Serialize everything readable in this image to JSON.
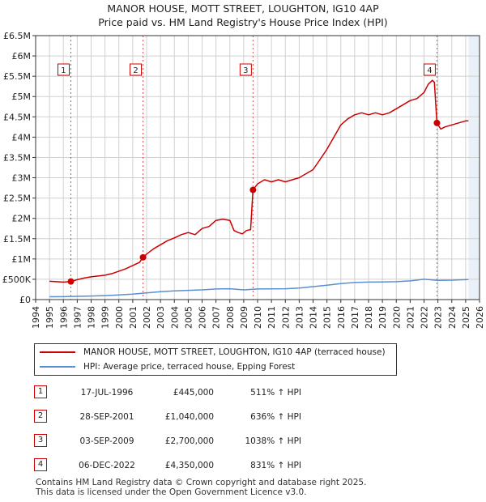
{
  "title": {
    "line1": "MANOR HOUSE, MOTT STREET, LOUGHTON, IG10 4AP",
    "line2": "Price paid vs. HM Land Registry's House Price Index (HPI)"
  },
  "colors": {
    "price_line": "#cc0000",
    "hpi_line": "#5b8fd1",
    "marker": "#cc0000",
    "band": "#dce6f2",
    "grid": "#d0d0d0"
  },
  "legend": {
    "price_label": "MANOR HOUSE, MOTT STREET, LOUGHTON, IG10 4AP (terraced house)",
    "hpi_label": "HPI: Average price, terraced house, Epping Forest"
  },
  "sales": [
    {
      "num": "1",
      "date": "17-JUL-1996",
      "price": "£445,000",
      "hpi": "511% ↑ HPI"
    },
    {
      "num": "2",
      "date": "28-SEP-2001",
      "price": "£1,040,000",
      "hpi": "636% ↑ HPI"
    },
    {
      "num": "3",
      "date": "03-SEP-2009",
      "price": "£2,700,000",
      "hpi": "1038% ↑ HPI"
    },
    {
      "num": "4",
      "date": "06-DEC-2022",
      "price": "£4,350,000",
      "hpi": "831% ↑ HPI"
    }
  ],
  "footer": {
    "line1": "Contains HM Land Registry data © Crown copyright and database right 2025.",
    "line2": "This data is licensed under the Open Government Licence v3.0."
  },
  "chart_data": {
    "type": "line",
    "xlim": [
      1994,
      2026
    ],
    "ylim": [
      0,
      6500000
    ],
    "x_ticks": [
      "1994",
      "1995",
      "1996",
      "1997",
      "1998",
      "1999",
      "2000",
      "2001",
      "2002",
      "2003",
      "2004",
      "2005",
      "2006",
      "2007",
      "2008",
      "2009",
      "2010",
      "2011",
      "2012",
      "2013",
      "2014",
      "2015",
      "2016",
      "2017",
      "2018",
      "2019",
      "2020",
      "2021",
      "2022",
      "2023",
      "2024",
      "2025",
      "2026"
    ],
    "y_ticks": [
      {
        "value": 0,
        "label": "£0"
      },
      {
        "value": 500000,
        "label": "£500K"
      },
      {
        "value": 1000000,
        "label": "£1M"
      },
      {
        "value": 1500000,
        "label": "£1.5M"
      },
      {
        "value": 2000000,
        "label": "£2M"
      },
      {
        "value": 2500000,
        "label": "£2.5M"
      },
      {
        "value": 3000000,
        "label": "£3M"
      },
      {
        "value": 3500000,
        "label": "£3.5M"
      },
      {
        "value": 4000000,
        "label": "£4M"
      },
      {
        "value": 4500000,
        "label": "£4.5M"
      },
      {
        "value": 5000000,
        "label": "£5M"
      },
      {
        "value": 5500000,
        "label": "£5.5M"
      },
      {
        "value": 6000000,
        "label": "£6M"
      },
      {
        "value": 6500000,
        "label": "£6.5M"
      }
    ],
    "future_shade_from": 2025.2,
    "series": [
      {
        "name": "MANOR HOUSE, MOTT STREET, LOUGHTON, IG10 4AP (terraced house)",
        "x": [
          1995.0,
          1995.5,
          1996.0,
          1996.54,
          1997.0,
          1997.5,
          1998.0,
          1998.5,
          1999.0,
          1999.5,
          2000.0,
          2000.5,
          2001.0,
          2001.5,
          2001.74,
          2002.0,
          2002.5,
          2003.0,
          2003.5,
          2004.0,
          2004.5,
          2005.0,
          2005.5,
          2006.0,
          2006.5,
          2007.0,
          2007.5,
          2008.0,
          2008.3,
          2008.6,
          2008.9,
          2009.2,
          2009.5,
          2009.67,
          2010.0,
          2010.5,
          2011.0,
          2011.5,
          2012.0,
          2012.5,
          2013.0,
          2013.5,
          2014.0,
          2014.5,
          2015.0,
          2015.5,
          2016.0,
          2016.5,
          2017.0,
          2017.5,
          2018.0,
          2018.5,
          2019.0,
          2019.5,
          2020.0,
          2020.5,
          2021.0,
          2021.5,
          2022.0,
          2022.3,
          2022.6,
          2022.75,
          2022.93,
          2023.2,
          2023.5,
          2024.0,
          2024.5,
          2025.0,
          2025.2
        ],
        "values": [
          450000,
          440000,
          430000,
          445000,
          490000,
          530000,
          560000,
          580000,
          600000,
          640000,
          700000,
          760000,
          840000,
          920000,
          1040000,
          1120000,
          1250000,
          1350000,
          1450000,
          1520000,
          1600000,
          1650000,
          1600000,
          1750000,
          1800000,
          1950000,
          1980000,
          1950000,
          1700000,
          1650000,
          1620000,
          1700000,
          1720000,
          2700000,
          2850000,
          2950000,
          2900000,
          2950000,
          2900000,
          2950000,
          3000000,
          3100000,
          3200000,
          3450000,
          3700000,
          4000000,
          4300000,
          4450000,
          4550000,
          4600000,
          4550000,
          4600000,
          4550000,
          4600000,
          4700000,
          4800000,
          4900000,
          4950000,
          5100000,
          5300000,
          5400000,
          5350000,
          4350000,
          4200000,
          4250000,
          4300000,
          4350000,
          4400000,
          4400000
        ]
      },
      {
        "name": "HPI: Average price, terraced house, Epping Forest",
        "x": [
          1995.0,
          1996.0,
          1997.0,
          1998.0,
          1999.0,
          2000.0,
          2001.0,
          2002.0,
          2003.0,
          2004.0,
          2005.0,
          2006.0,
          2007.0,
          2008.0,
          2009.0,
          2010.0,
          2011.0,
          2012.0,
          2013.0,
          2014.0,
          2015.0,
          2016.0,
          2017.0,
          2018.0,
          2019.0,
          2020.0,
          2021.0,
          2022.0,
          2023.0,
          2024.0,
          2025.0,
          2025.2
        ],
        "values": [
          70000,
          72000,
          80000,
          88000,
          98000,
          115000,
          135000,
          165000,
          195000,
          215000,
          228000,
          240000,
          262000,
          268000,
          240000,
          262000,
          266000,
          268000,
          285000,
          320000,
          355000,
          392000,
          420000,
          430000,
          432000,
          440000,
          460000,
          500000,
          475000,
          478000,
          490000,
          492000
        ]
      }
    ],
    "sales": [
      {
        "num": "1",
        "x": 1996.54,
        "y": 445000
      },
      {
        "num": "2",
        "x": 2001.74,
        "y": 1040000
      },
      {
        "num": "3",
        "x": 2009.67,
        "y": 2700000
      },
      {
        "num": "4",
        "x": 2022.93,
        "y": 4350000
      }
    ]
  }
}
